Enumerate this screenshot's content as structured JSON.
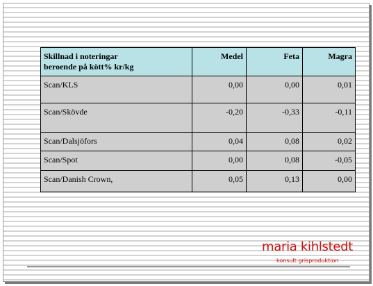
{
  "table": {
    "header": {
      "label_line1": "Skillnad i noteringar",
      "label_line2": "beroende på kött% kr/kg",
      "medel": "Medel",
      "feta": "Feta",
      "magra": "Magra"
    },
    "rows": [
      {
        "name": "Scan/KLS",
        "medel": "0,00",
        "feta": "0,00",
        "magra": "0,01"
      },
      {
        "name": "Scan/Skövde",
        "medel": "-0,20",
        "feta": "-0,33",
        "magra": "-0,11"
      },
      {
        "name": "Scan/Dalsjöfors",
        "medel": "0,04",
        "feta": "0,08",
        "magra": "0,02"
      },
      {
        "name": "Scan/Spot",
        "medel": "0,00",
        "feta": "0,08",
        "magra": "-0,05"
      },
      {
        "name": "Scan/Danish Crown,",
        "medel": "0,05",
        "feta": "0,13",
        "magra": "0,00"
      }
    ]
  },
  "logo": {
    "name": "maria kihlstedt",
    "tagline": "konsult grisproduktion"
  }
}
